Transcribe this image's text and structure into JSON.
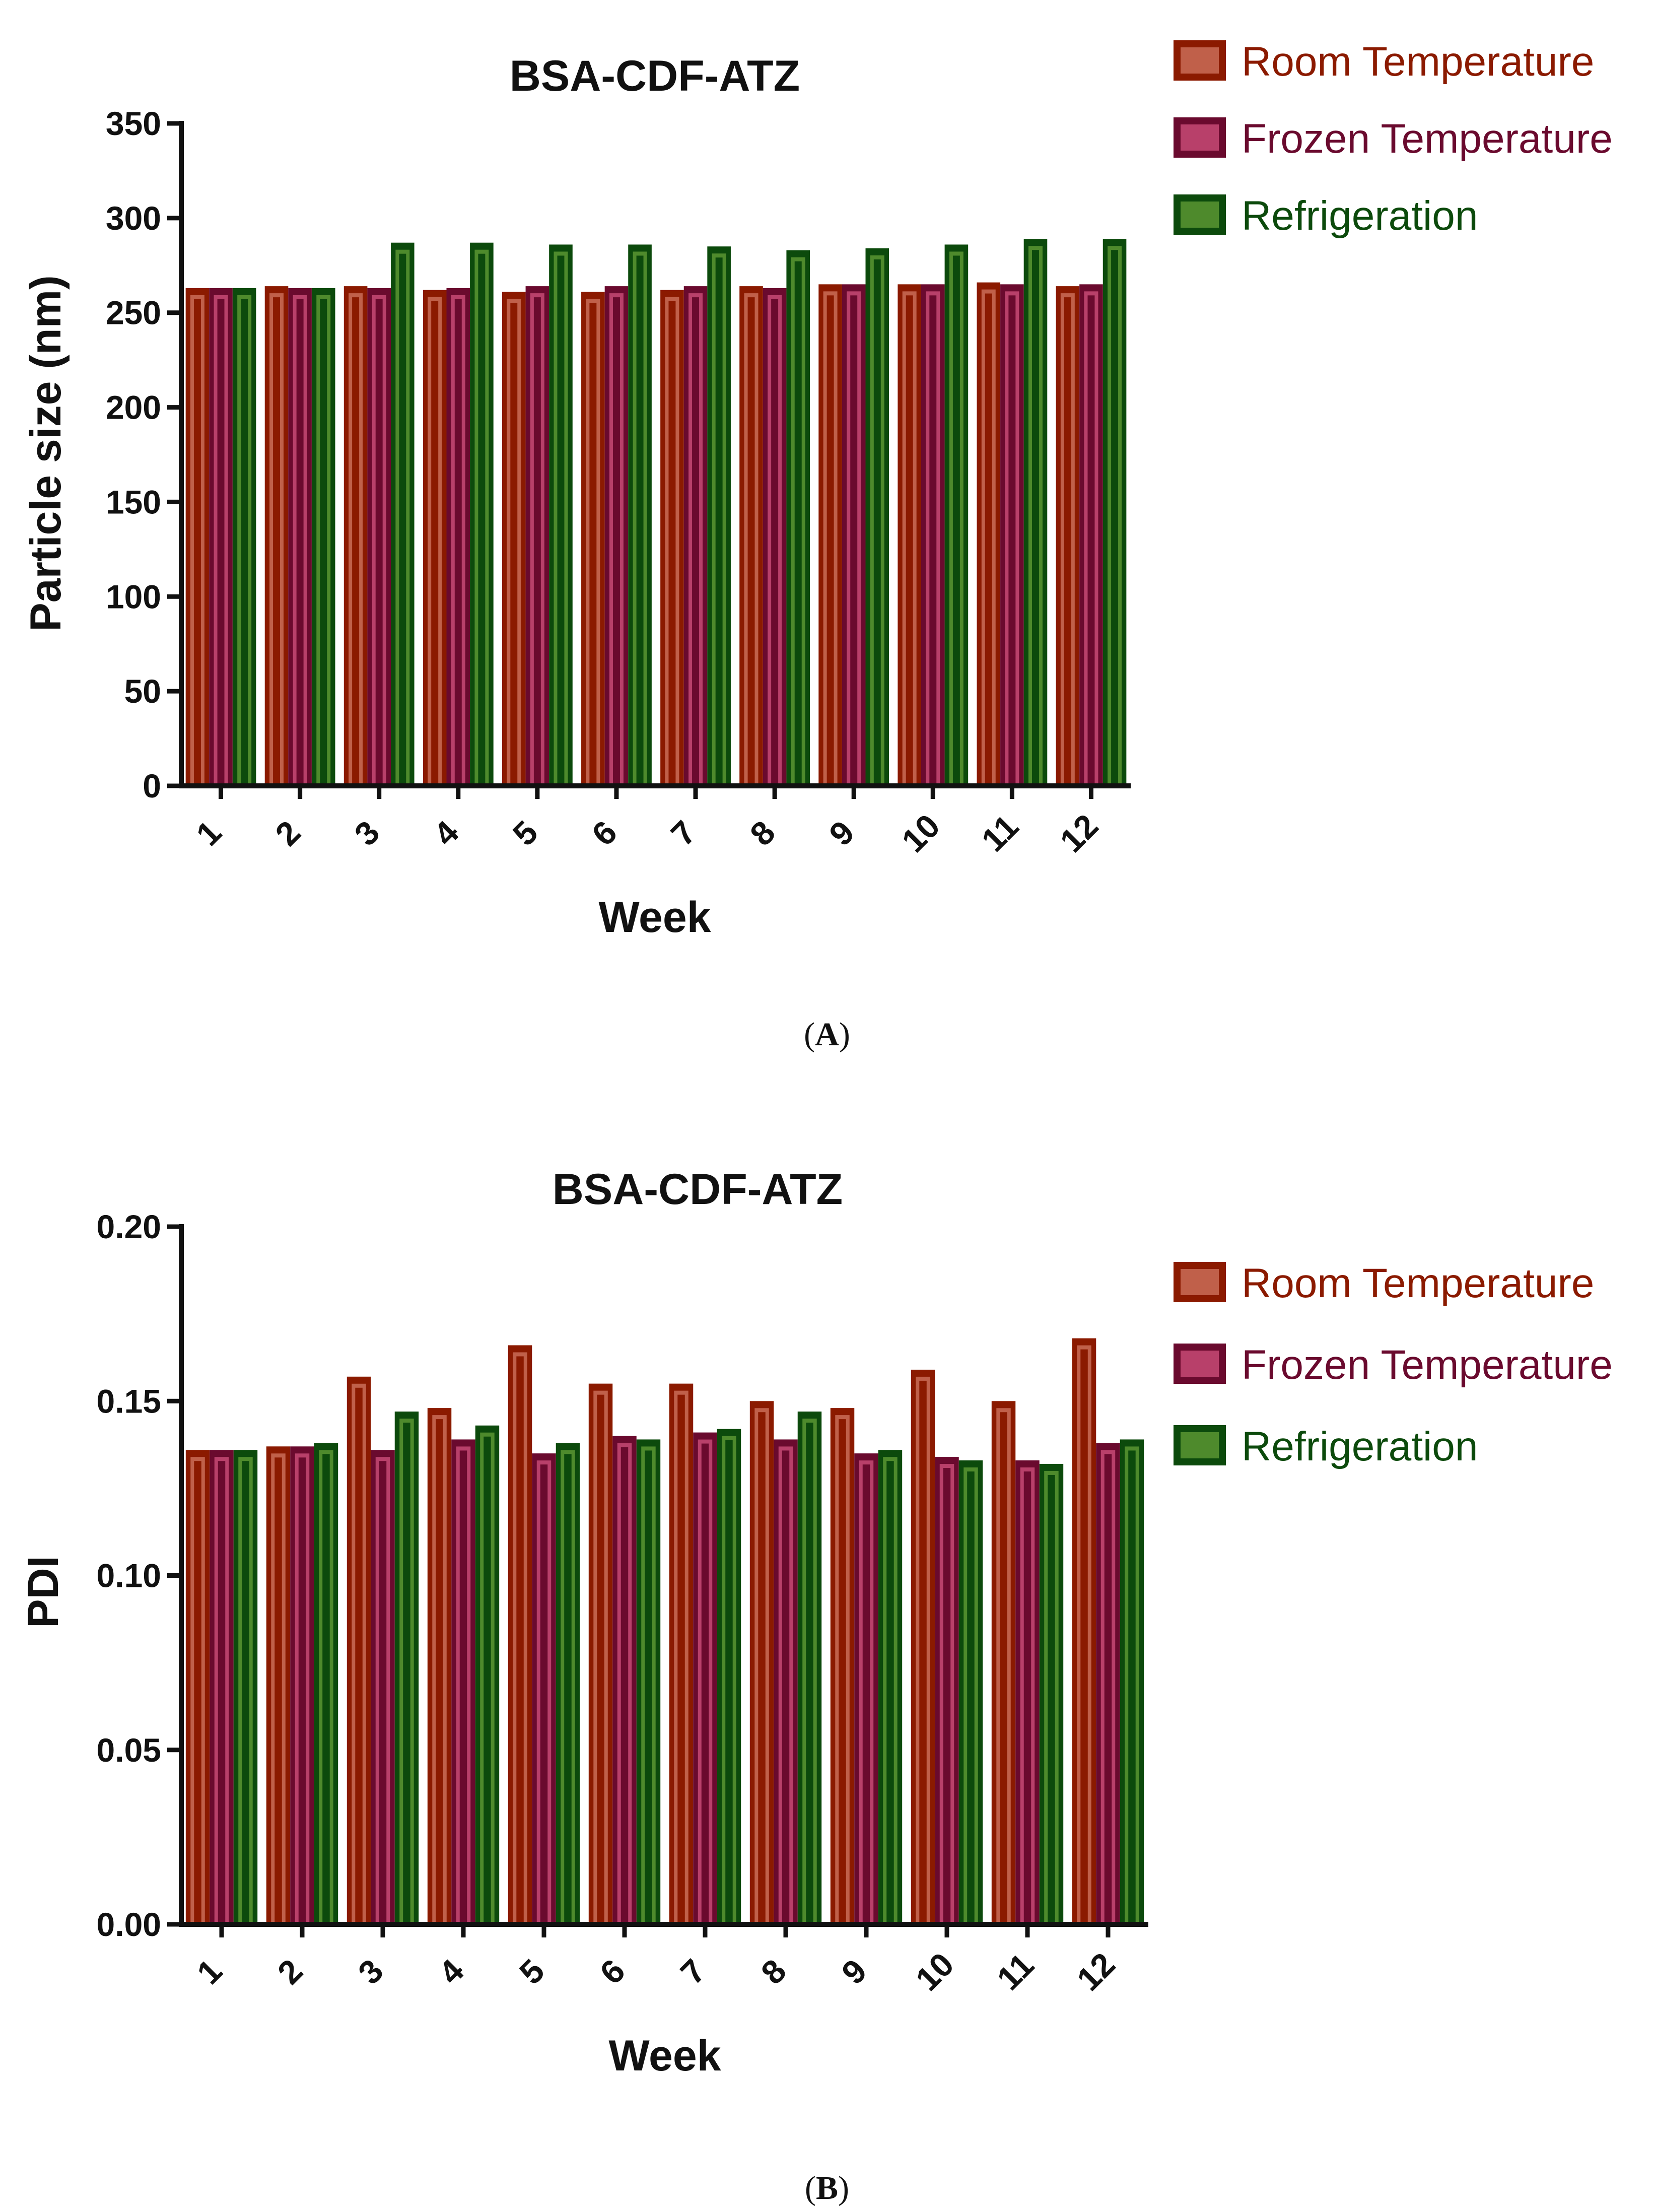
{
  "colors": {
    "room": {
      "fill": "#8B1A00",
      "inner": "#C0604A",
      "legend_text": "#8B1A00"
    },
    "frozen": {
      "fill": "#6A0A2E",
      "inner": "#B8406A",
      "legend_text": "#6A0A2E"
    },
    "refrigeration": {
      "fill": "#0C4A0C",
      "inner": "#4E8A2C",
      "legend_text": "#0C4A0C"
    }
  },
  "chart_data": [
    {
      "panel": "A",
      "panel_label": {
        "open": "(",
        "letter": "A",
        "close": ")"
      },
      "type": "bar",
      "title": "BSA-CDF-ATZ",
      "xlabel": "Week",
      "ylabel": "Particle size (nm)",
      "ylim": [
        0,
        350
      ],
      "yticks": [
        "0",
        "50",
        "100",
        "150",
        "200",
        "250",
        "300",
        "350"
      ],
      "categories": [
        "1",
        "2",
        "3",
        "4",
        "5",
        "6",
        "7",
        "8",
        "9",
        "10",
        "11",
        "12"
      ],
      "legend_position": "top-right",
      "series": [
        {
          "key": "room",
          "name": "Room Temperature",
          "values": [
            263,
            264,
            264,
            262,
            261,
            261,
            262,
            264,
            265,
            265,
            266,
            264
          ]
        },
        {
          "key": "frozen",
          "name": "Frozen Temperature",
          "values": [
            263,
            263,
            263,
            263,
            264,
            264,
            264,
            263,
            265,
            265,
            265,
            265
          ]
        },
        {
          "key": "refrigeration",
          "name": "Refrigeration",
          "values": [
            263,
            263,
            287,
            287,
            286,
            286,
            285,
            283,
            284,
            286,
            289,
            289
          ]
        }
      ]
    },
    {
      "panel": "B",
      "panel_label": {
        "open": "(",
        "letter": "B",
        "close": ")"
      },
      "type": "bar",
      "title": "BSA-CDF-ATZ",
      "xlabel": "Week",
      "ylabel": "PDI",
      "ylim": [
        0,
        0.2
      ],
      "yticks": [
        "0.00",
        "0.05",
        "0.10",
        "0.15",
        "0.20"
      ],
      "categories": [
        "1",
        "2",
        "3",
        "4",
        "5",
        "6",
        "7",
        "8",
        "9",
        "10",
        "11",
        "12"
      ],
      "legend_position": "right",
      "series": [
        {
          "key": "room",
          "name": "Room Temperature",
          "values": [
            0.136,
            0.137,
            0.157,
            0.148,
            0.166,
            0.155,
            0.155,
            0.15,
            0.148,
            0.159,
            0.15,
            0.168
          ]
        },
        {
          "key": "frozen",
          "name": "Frozen Temperature",
          "values": [
            0.136,
            0.137,
            0.136,
            0.139,
            0.135,
            0.14,
            0.141,
            0.139,
            0.135,
            0.134,
            0.133,
            0.138
          ]
        },
        {
          "key": "refrigeration",
          "name": "Refrigeration",
          "values": [
            0.136,
            0.138,
            0.147,
            0.143,
            0.138,
            0.139,
            0.142,
            0.147,
            0.136,
            0.133,
            0.132,
            0.139
          ]
        }
      ]
    }
  ]
}
